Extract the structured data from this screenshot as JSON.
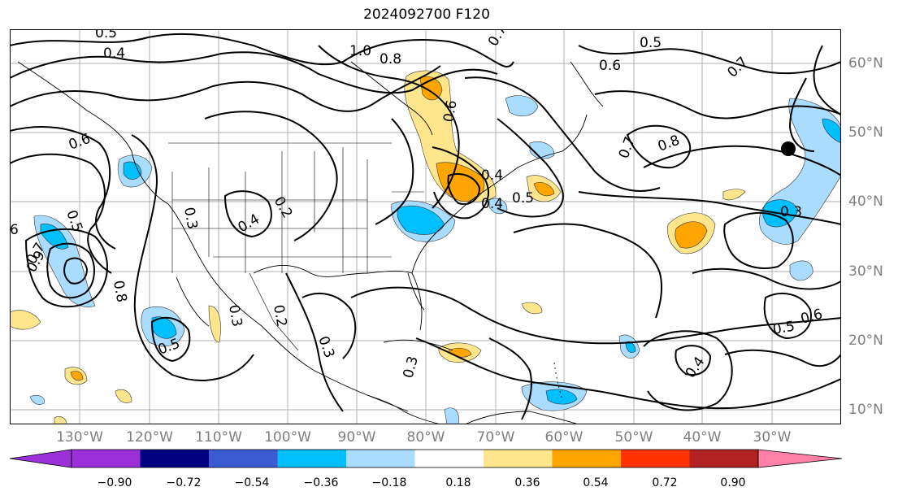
{
  "title": "2024092700 F120",
  "map": {
    "longitude_labels": [
      "130°W",
      "120°W",
      "110°W",
      "100°W",
      "90°W",
      "80°W",
      "70°W",
      "60°W",
      "50°W",
      "40°W",
      "30°W"
    ],
    "latitude_labels": [
      "60°N",
      "50°N",
      "40°N",
      "30°N",
      "20°N",
      "10°N"
    ],
    "contour_labels": [
      "0.5",
      "0.4",
      "1.0",
      "0.8",
      "0.6",
      "0.7",
      "0.9",
      "0.3",
      "0.2",
      "0.4",
      "0.5",
      "0.6",
      "0.7",
      "0.8",
      "0.6",
      "0.3",
      "0.5",
      "0.4",
      "0.2",
      "0.3",
      "0.3",
      "0.5",
      "0.6",
      "0.5",
      "0.4",
      "0.3",
      "0.8",
      "0.7",
      "6",
      "0.5",
      "0.7",
      "0.4"
    ],
    "marker": "black dot near 48°N 27°W"
  },
  "colorbar": {
    "tick_labels": [
      "−0.90",
      "−0.72",
      "−0.54",
      "−0.36",
      "−0.18",
      "0.18",
      "0.36",
      "0.54",
      "0.72",
      "0.90"
    ],
    "colors": [
      "#9b30d9",
      "#000080",
      "#3a5bd1",
      "#00bfff",
      "#aadcff",
      "#ffffff",
      "#ffe68c",
      "#ffa500",
      "#ff3300",
      "#b22222",
      "#ff80a8"
    ]
  }
}
